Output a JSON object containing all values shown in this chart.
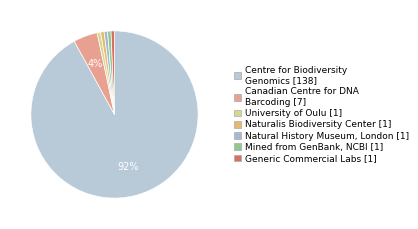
{
  "labels": [
    "Centre for Biodiversity\nGenomics [138]",
    "Canadian Centre for DNA\nBarcoding [7]",
    "University of Oulu [1]",
    "Naturalis Biodiversity Center [1]",
    "Natural History Museum, London [1]",
    "Mined from GenBank, NCBI [1]",
    "Generic Commercial Labs [1]"
  ],
  "values": [
    138,
    7,
    1,
    1,
    1,
    1,
    1
  ],
  "colors": [
    "#b8c9d8",
    "#e8a090",
    "#d4d890",
    "#e8b870",
    "#a4b8d0",
    "#90c890",
    "#d87060"
  ],
  "background_color": "#ffffff",
  "text_color": "#ffffff",
  "fontsize": 7,
  "legend_fontsize": 6.5
}
